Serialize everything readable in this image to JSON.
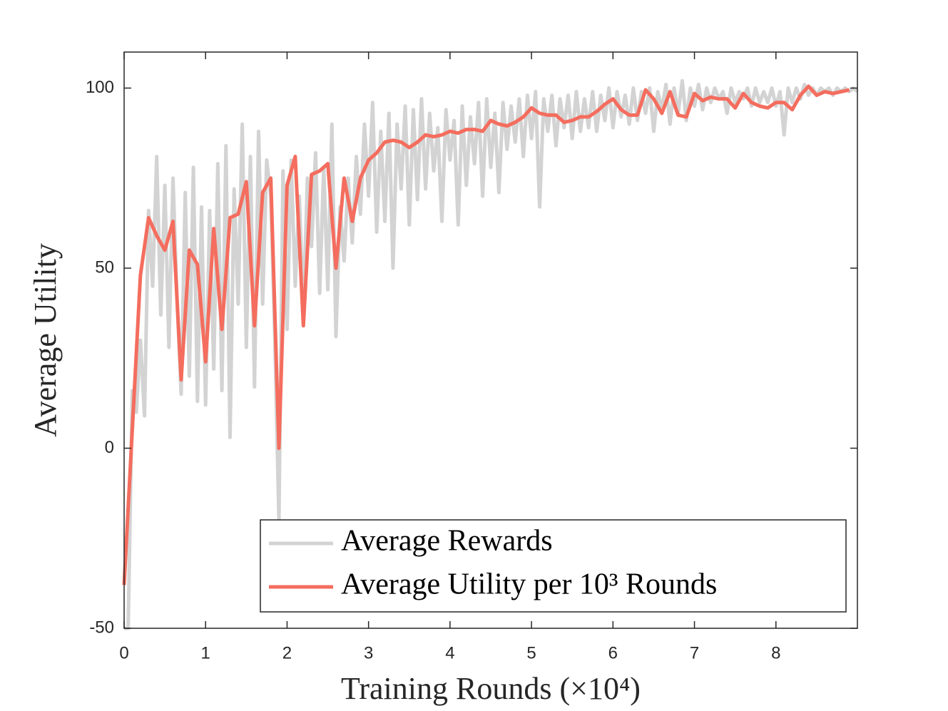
{
  "chart_data": {
    "type": "line",
    "xlabel": "Training Rounds (×10⁴)",
    "ylabel": "Average Utility",
    "xlim": [
      0,
      9
    ],
    "ylim": [
      -50,
      110
    ],
    "xticks": [
      0,
      1,
      2,
      3,
      4,
      5,
      6,
      7,
      8
    ],
    "yticks": [
      -50,
      0,
      50,
      100
    ],
    "legend": "lower right",
    "series": [
      {
        "name": "Average Rewards",
        "color": "#d3d3d3",
        "x": [
          0,
          0.05,
          0.1,
          0.15,
          0.2,
          0.25,
          0.3,
          0.35,
          0.4,
          0.45,
          0.5,
          0.55,
          0.6,
          0.65,
          0.7,
          0.75,
          0.8,
          0.85,
          0.9,
          0.95,
          1,
          1.05,
          1.1,
          1.15,
          1.2,
          1.25,
          1.3,
          1.35,
          1.4,
          1.45,
          1.5,
          1.55,
          1.6,
          1.65,
          1.7,
          1.75,
          1.8,
          1.85,
          1.9,
          1.95,
          2,
          2.05,
          2.1,
          2.15,
          2.2,
          2.25,
          2.3,
          2.35,
          2.4,
          2.45,
          2.5,
          2.55,
          2.6,
          2.65,
          2.7,
          2.75,
          2.8,
          2.85,
          2.9,
          2.95,
          3,
          3.05,
          3.1,
          3.15,
          3.2,
          3.25,
          3.3,
          3.35,
          3.4,
          3.45,
          3.5,
          3.55,
          3.6,
          3.65,
          3.7,
          3.75,
          3.8,
          3.85,
          3.9,
          3.95,
          4,
          4.05,
          4.1,
          4.15,
          4.2,
          4.25,
          4.3,
          4.35,
          4.4,
          4.45,
          4.5,
          4.55,
          4.6,
          4.65,
          4.7,
          4.75,
          4.8,
          4.85,
          4.9,
          4.95,
          5,
          5.05,
          5.1,
          5.15,
          5.2,
          5.25,
          5.3,
          5.35,
          5.4,
          5.45,
          5.5,
          5.55,
          5.6,
          5.65,
          5.7,
          5.75,
          5.8,
          5.85,
          5.9,
          5.95,
          6,
          6.05,
          6.1,
          6.15,
          6.2,
          6.25,
          6.3,
          6.35,
          6.4,
          6.45,
          6.5,
          6.55,
          6.6,
          6.65,
          6.7,
          6.75,
          6.8,
          6.85,
          6.9,
          6.95,
          7,
          7.05,
          7.1,
          7.15,
          7.2,
          7.25,
          7.3,
          7.35,
          7.4,
          7.45,
          7.5,
          7.55,
          7.6,
          7.65,
          7.7,
          7.75,
          7.8,
          7.85,
          7.9,
          7.95,
          8,
          8.05,
          8.1,
          8.15,
          8.2,
          8.25,
          8.3,
          8.35,
          8.4,
          8.45,
          8.5,
          8.55,
          8.6,
          8.65,
          8.7,
          8.75,
          8.8,
          8.85,
          8.9,
          8.95,
          9
        ],
        "values": [
          -50,
          -50,
          16,
          10,
          30,
          9,
          66,
          45,
          81,
          37,
          73,
          28,
          75,
          41,
          15,
          71,
          20,
          78,
          13,
          67,
          12,
          66,
          22,
          79,
          16,
          84,
          3,
          72,
          40,
          90,
          28,
          81,
          17,
          88,
          40,
          80,
          70,
          30,
          -20,
          77,
          33,
          80,
          45,
          70,
          38,
          75,
          56,
          82,
          43,
          78,
          44,
          90,
          31,
          67,
          52,
          75,
          57,
          81,
          65,
          90,
          70,
          96,
          60,
          88,
          63,
          93,
          50,
          90,
          72,
          95,
          62,
          94,
          69,
          97,
          72,
          93,
          77,
          89,
          63,
          94,
          80,
          91,
          62,
          95,
          73,
          92,
          79,
          96,
          70,
          97,
          78,
          93,
          71,
          96,
          83,
          95,
          85,
          97,
          81,
          98,
          86,
          99,
          67,
          97,
          88,
          98,
          84,
          97,
          89,
          98,
          86,
          99,
          88,
          97,
          89,
          99,
          88,
          98,
          91,
          100,
          89,
          99,
          92,
          98,
          90,
          100,
          91,
          99,
          93,
          100,
          88,
          99,
          94,
          101,
          90,
          100,
          93,
          102,
          91,
          100,
          95,
          101,
          94,
          100,
          96,
          100,
          97,
          99,
          93,
          100,
          96,
          99,
          97,
          100,
          95,
          100,
          96,
          99,
          96,
          100,
          95,
          99,
          87,
          100,
          96,
          100,
          97,
          101,
          98,
          100,
          98,
          100,
          99,
          100,
          98,
          100,
          99,
          100,
          99,
          100,
          99
        ]
      },
      {
        "name": "Average Utility per 10³ Rounds",
        "color": "#f46d5e",
        "x": [
          0,
          0.1,
          0.2,
          0.3,
          0.4,
          0.5,
          0.6,
          0.7,
          0.8,
          0.9,
          1,
          1.1,
          1.2,
          1.3,
          1.4,
          1.5,
          1.6,
          1.7,
          1.8,
          1.9,
          2,
          2.1,
          2.2,
          2.3,
          2.4,
          2.5,
          2.6,
          2.7,
          2.8,
          2.9,
          3,
          3.1,
          3.2,
          3.3,
          3.4,
          3.5,
          3.6,
          3.7,
          3.8,
          3.9,
          4,
          4.1,
          4.2,
          4.3,
          4.4,
          4.5,
          4.6,
          4.7,
          4.8,
          4.9,
          5,
          5.1,
          5.2,
          5.3,
          5.4,
          5.5,
          5.6,
          5.7,
          5.8,
          5.9,
          6,
          6.1,
          6.2,
          6.3,
          6.4,
          6.5,
          6.6,
          6.7,
          6.8,
          6.9,
          7,
          7.1,
          7.2,
          7.3,
          7.4,
          7.5,
          7.6,
          7.7,
          7.8,
          7.9,
          8,
          8.1,
          8.2,
          8.3,
          8.4,
          8.5,
          8.6,
          8.7,
          8.8,
          8.9
        ],
        "values": [
          -38,
          5,
          48,
          64,
          59,
          55,
          63,
          19,
          55,
          51,
          24,
          61,
          33,
          64,
          65,
          74,
          34,
          71,
          75,
          0,
          73,
          81,
          34,
          76,
          77,
          79,
          50,
          75,
          63,
          75,
          80,
          82,
          85,
          85.5,
          85,
          83.5,
          85,
          87,
          86.5,
          87,
          88,
          87.5,
          88.5,
          88.5,
          88,
          91,
          90,
          89.5,
          90.5,
          92,
          94.5,
          93,
          92.5,
          92.5,
          90.5,
          91,
          92,
          92,
          93.5,
          95.5,
          97,
          94,
          92.5,
          92.5,
          99.5,
          97,
          93,
          99,
          92.5,
          92,
          98.5,
          96.5,
          97.5,
          97,
          97,
          94.5,
          98.5,
          96,
          95,
          94.5,
          96,
          96,
          94,
          98,
          100.5,
          98,
          99,
          98.5,
          99,
          99.5
        ]
      }
    ]
  }
}
